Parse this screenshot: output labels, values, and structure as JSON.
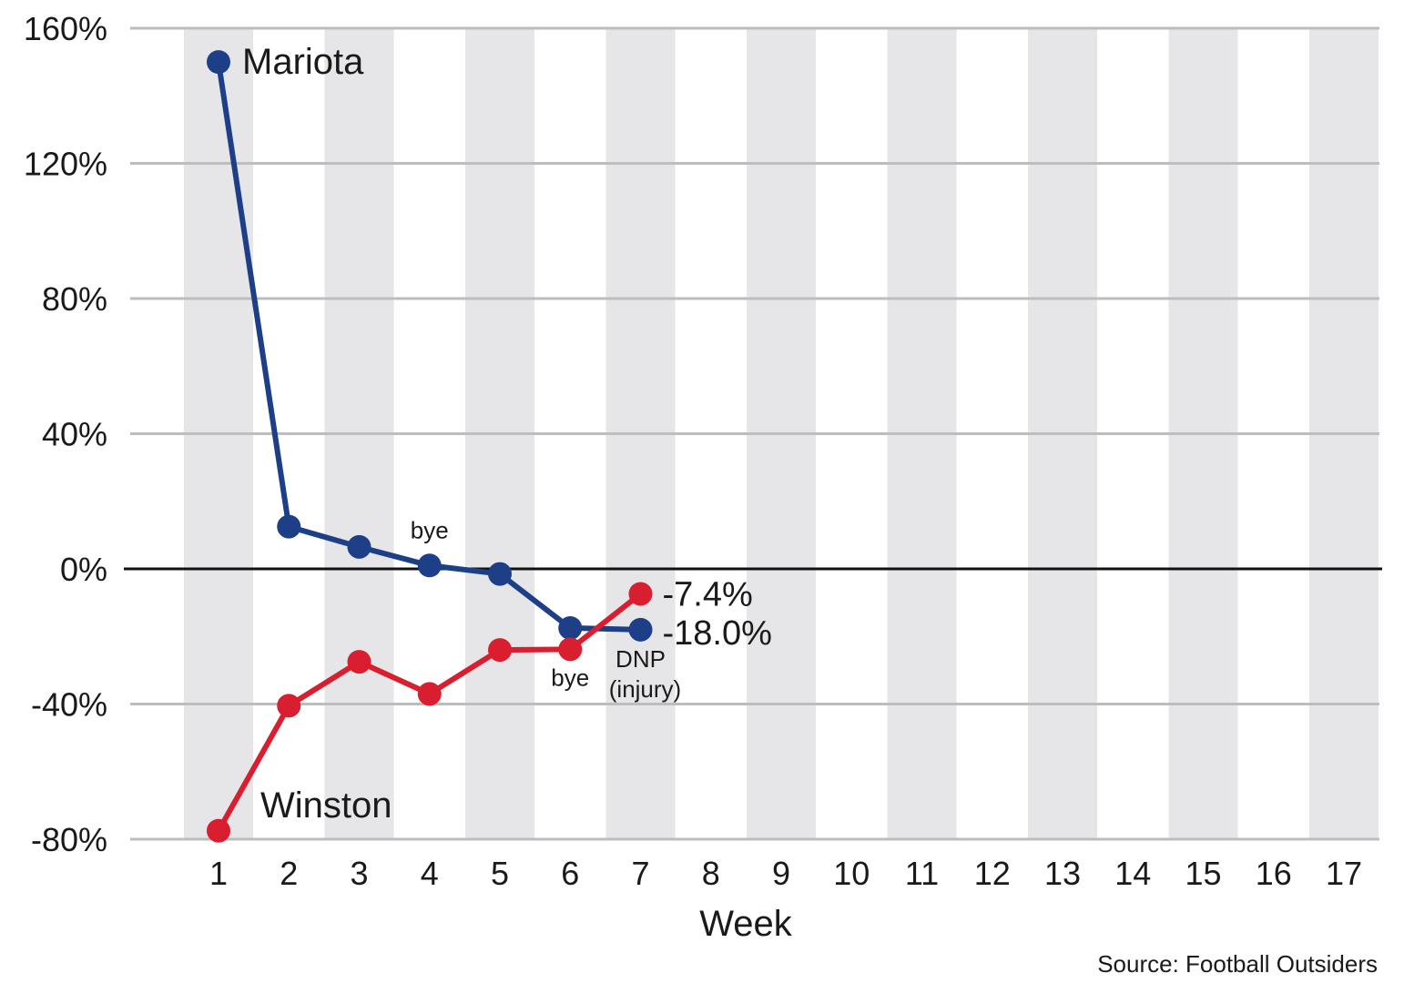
{
  "chart_data": {
    "type": "line",
    "xlabel": "Week",
    "ylabel": "",
    "x": [
      1,
      2,
      3,
      4,
      5,
      6,
      7,
      8,
      9,
      10,
      11,
      12,
      13,
      14,
      15,
      16,
      17
    ],
    "x_tick_labels": [
      "1",
      "2",
      "3",
      "4",
      "5",
      "6",
      "7",
      "8",
      "9",
      "10",
      "11",
      "12",
      "13",
      "14",
      "15",
      "16",
      "17"
    ],
    "ylim": [
      -80,
      160
    ],
    "y_ticks": [
      160,
      120,
      80,
      40,
      0,
      -40,
      -80
    ],
    "y_tick_labels": [
      "160%",
      "120%",
      "80%",
      "40%",
      "0%",
      "-40%",
      "-80%"
    ],
    "grid": true,
    "alternating_week_shading": true,
    "series": [
      {
        "name": "Mariota",
        "color": "#1d3f87",
        "x": [
          1,
          2,
          3,
          4,
          5,
          6,
          7
        ],
        "y": [
          150,
          12.5,
          6.5,
          1,
          -1.5,
          -17.5,
          -18.0
        ]
      },
      {
        "name": "Winston",
        "color": "#d81e2f",
        "x": [
          1,
          2,
          3,
          4,
          5,
          6,
          7
        ],
        "y": [
          -77.5,
          -40.5,
          -27.5,
          -37,
          -24,
          -23.8,
          -7.4
        ]
      }
    ],
    "end_labels": [
      {
        "series": "Winston",
        "text": "-7.4%"
      },
      {
        "series": "Mariota",
        "text": "-18.0%"
      }
    ],
    "annotations": [
      {
        "text": "bye",
        "x": 4,
        "y": 1,
        "position": "above"
      },
      {
        "text": "bye",
        "x": 6,
        "y": -23.8,
        "position": "below"
      },
      {
        "text": "DNP",
        "x": 7,
        "y": -18.0,
        "position": "below"
      },
      {
        "text": "(injury)",
        "x": 7,
        "y": -18.0,
        "position": "below"
      }
    ],
    "source": "Source: Football Outsiders"
  }
}
